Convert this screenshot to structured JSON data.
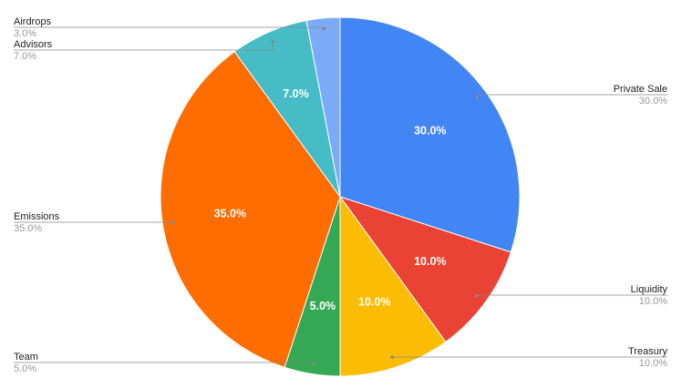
{
  "chart_data": {
    "type": "pie",
    "categories": [
      "Private Sale",
      "Liquidity",
      "Treasury",
      "Team",
      "Emissions",
      "Advisors",
      "Airdrops"
    ],
    "values": [
      30,
      10,
      10,
      5,
      35,
      7,
      3
    ],
    "value_labels": [
      "30.0%",
      "10.0%",
      "10.0%",
      "5.0%",
      "35.0%",
      "7.0%",
      "3.0%"
    ],
    "colors": [
      "#4285f4",
      "#ea4335",
      "#fbbc04",
      "#34a853",
      "#ff6d01",
      "#46bdc6",
      "#7baaf7"
    ]
  }
}
